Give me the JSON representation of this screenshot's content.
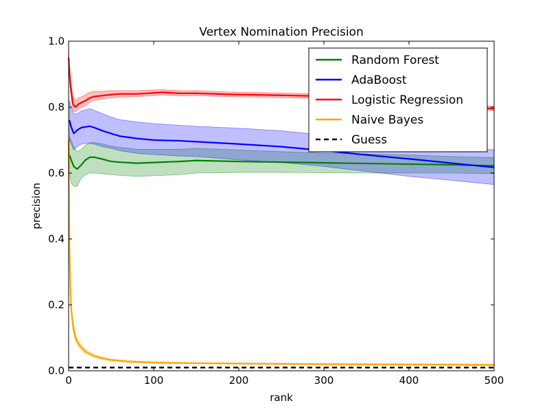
{
  "chart_data": {
    "type": "line",
    "title": "Vertex Nomination Precision",
    "xlabel": "rank",
    "ylabel": "precision",
    "xlim": [
      0,
      500
    ],
    "ylim": [
      0.0,
      1.0
    ],
    "xticks": [
      0,
      100,
      200,
      300,
      400,
      500
    ],
    "xtick_labels": [
      "0",
      "100",
      "200",
      "300",
      "400",
      "500"
    ],
    "yticks": [
      0.0,
      0.2,
      0.4,
      0.6,
      0.8,
      1.0
    ],
    "ytick_labels": [
      "0.0",
      "0.2",
      "0.4",
      "0.6",
      "0.8",
      "1.0"
    ],
    "legend_position": "top-right",
    "series": [
      {
        "name": "Random Forest",
        "color": "#008000",
        "band_color": "#008000",
        "x": [
          1,
          3,
          6,
          10,
          15,
          20,
          25,
          30,
          40,
          50,
          60,
          80,
          100,
          130,
          150,
          200,
          250,
          300,
          350,
          400,
          450,
          500
        ],
        "y": [
          0.655,
          0.64,
          0.62,
          0.612,
          0.625,
          0.64,
          0.648,
          0.648,
          0.642,
          0.635,
          0.633,
          0.63,
          0.632,
          0.635,
          0.638,
          0.635,
          0.633,
          0.631,
          0.629,
          0.627,
          0.625,
          0.622
        ],
        "lower": [
          0.6,
          0.57,
          0.56,
          0.56,
          0.585,
          0.595,
          0.6,
          0.6,
          0.598,
          0.595,
          0.593,
          0.59,
          0.592,
          0.595,
          0.6,
          0.602,
          0.602,
          0.601,
          0.6,
          0.6,
          0.6,
          0.598
        ],
        "upper": [
          0.71,
          0.7,
          0.68,
          0.665,
          0.672,
          0.685,
          0.692,
          0.693,
          0.688,
          0.682,
          0.678,
          0.672,
          0.672,
          0.672,
          0.675,
          0.67,
          0.665,
          0.66,
          0.658,
          0.655,
          0.65,
          0.647
        ]
      },
      {
        "name": "AdaBoost",
        "color": "#0000ff",
        "band_color": "#0000ff",
        "x": [
          1,
          3,
          6,
          10,
          15,
          20,
          25,
          30,
          40,
          50,
          60,
          80,
          100,
          130,
          150,
          200,
          250,
          300,
          350,
          400,
          450,
          500
        ],
        "y": [
          0.76,
          0.74,
          0.72,
          0.73,
          0.738,
          0.74,
          0.742,
          0.738,
          0.728,
          0.72,
          0.712,
          0.705,
          0.7,
          0.698,
          0.695,
          0.688,
          0.68,
          0.668,
          0.655,
          0.643,
          0.63,
          0.617
        ],
        "lower": [
          0.7,
          0.69,
          0.67,
          0.68,
          0.688,
          0.69,
          0.69,
          0.688,
          0.68,
          0.675,
          0.668,
          0.66,
          0.656,
          0.652,
          0.65,
          0.64,
          0.632,
          0.62,
          0.605,
          0.59,
          0.578,
          0.565
        ],
        "upper": [
          0.82,
          0.8,
          0.78,
          0.78,
          0.788,
          0.792,
          0.795,
          0.79,
          0.78,
          0.77,
          0.762,
          0.755,
          0.75,
          0.745,
          0.742,
          0.736,
          0.728,
          0.715,
          0.703,
          0.693,
          0.682,
          0.67
        ]
      },
      {
        "name": "Logistic Regression",
        "color": "#ff0000",
        "band_color": "#ff0000",
        "x": [
          0,
          2,
          5,
          8,
          12,
          16,
          20,
          25,
          30,
          40,
          50,
          60,
          80,
          100,
          110,
          130,
          150,
          200,
          250,
          300,
          350,
          400,
          450,
          500
        ],
        "y": [
          0.95,
          0.87,
          0.81,
          0.8,
          0.81,
          0.815,
          0.82,
          0.828,
          0.832,
          0.835,
          0.838,
          0.84,
          0.84,
          0.843,
          0.845,
          0.842,
          0.842,
          0.838,
          0.836,
          0.833,
          0.825,
          0.815,
          0.805,
          0.795
        ],
        "lower": [
          0.93,
          0.85,
          0.79,
          0.785,
          0.795,
          0.8,
          0.805,
          0.815,
          0.82,
          0.825,
          0.828,
          0.83,
          0.832,
          0.835,
          0.837,
          0.834,
          0.835,
          0.831,
          0.829,
          0.826,
          0.818,
          0.808,
          0.798,
          0.789
        ],
        "upper": [
          0.97,
          0.89,
          0.83,
          0.82,
          0.828,
          0.832,
          0.838,
          0.845,
          0.848,
          0.848,
          0.85,
          0.85,
          0.85,
          0.852,
          0.853,
          0.85,
          0.85,
          0.845,
          0.843,
          0.84,
          0.832,
          0.822,
          0.812,
          0.802
        ]
      },
      {
        "name": "Naive Bayes",
        "color": "#ffa500",
        "band_color": "#ffa500",
        "x": [
          0,
          1,
          2,
          3,
          5,
          8,
          12,
          16,
          20,
          30,
          40,
          50,
          70,
          100,
          150,
          200,
          300,
          400,
          500
        ],
        "y": [
          0.7,
          0.38,
          0.26,
          0.19,
          0.14,
          0.1,
          0.08,
          0.068,
          0.058,
          0.045,
          0.038,
          0.033,
          0.028,
          0.025,
          0.023,
          0.022,
          0.02,
          0.019,
          0.018
        ],
        "lower": [
          0.65,
          0.34,
          0.23,
          0.17,
          0.125,
          0.09,
          0.072,
          0.061,
          0.052,
          0.04,
          0.034,
          0.03,
          0.025,
          0.023,
          0.021,
          0.02,
          0.018,
          0.017,
          0.016
        ],
        "upper": [
          0.75,
          0.42,
          0.29,
          0.21,
          0.155,
          0.11,
          0.088,
          0.075,
          0.064,
          0.05,
          0.042,
          0.036,
          0.031,
          0.027,
          0.025,
          0.024,
          0.022,
          0.021,
          0.02
        ]
      },
      {
        "name": "Guess",
        "color": "#000000",
        "dashed": true,
        "x": [
          0,
          500
        ],
        "y": [
          0.01,
          0.01
        ]
      }
    ]
  }
}
